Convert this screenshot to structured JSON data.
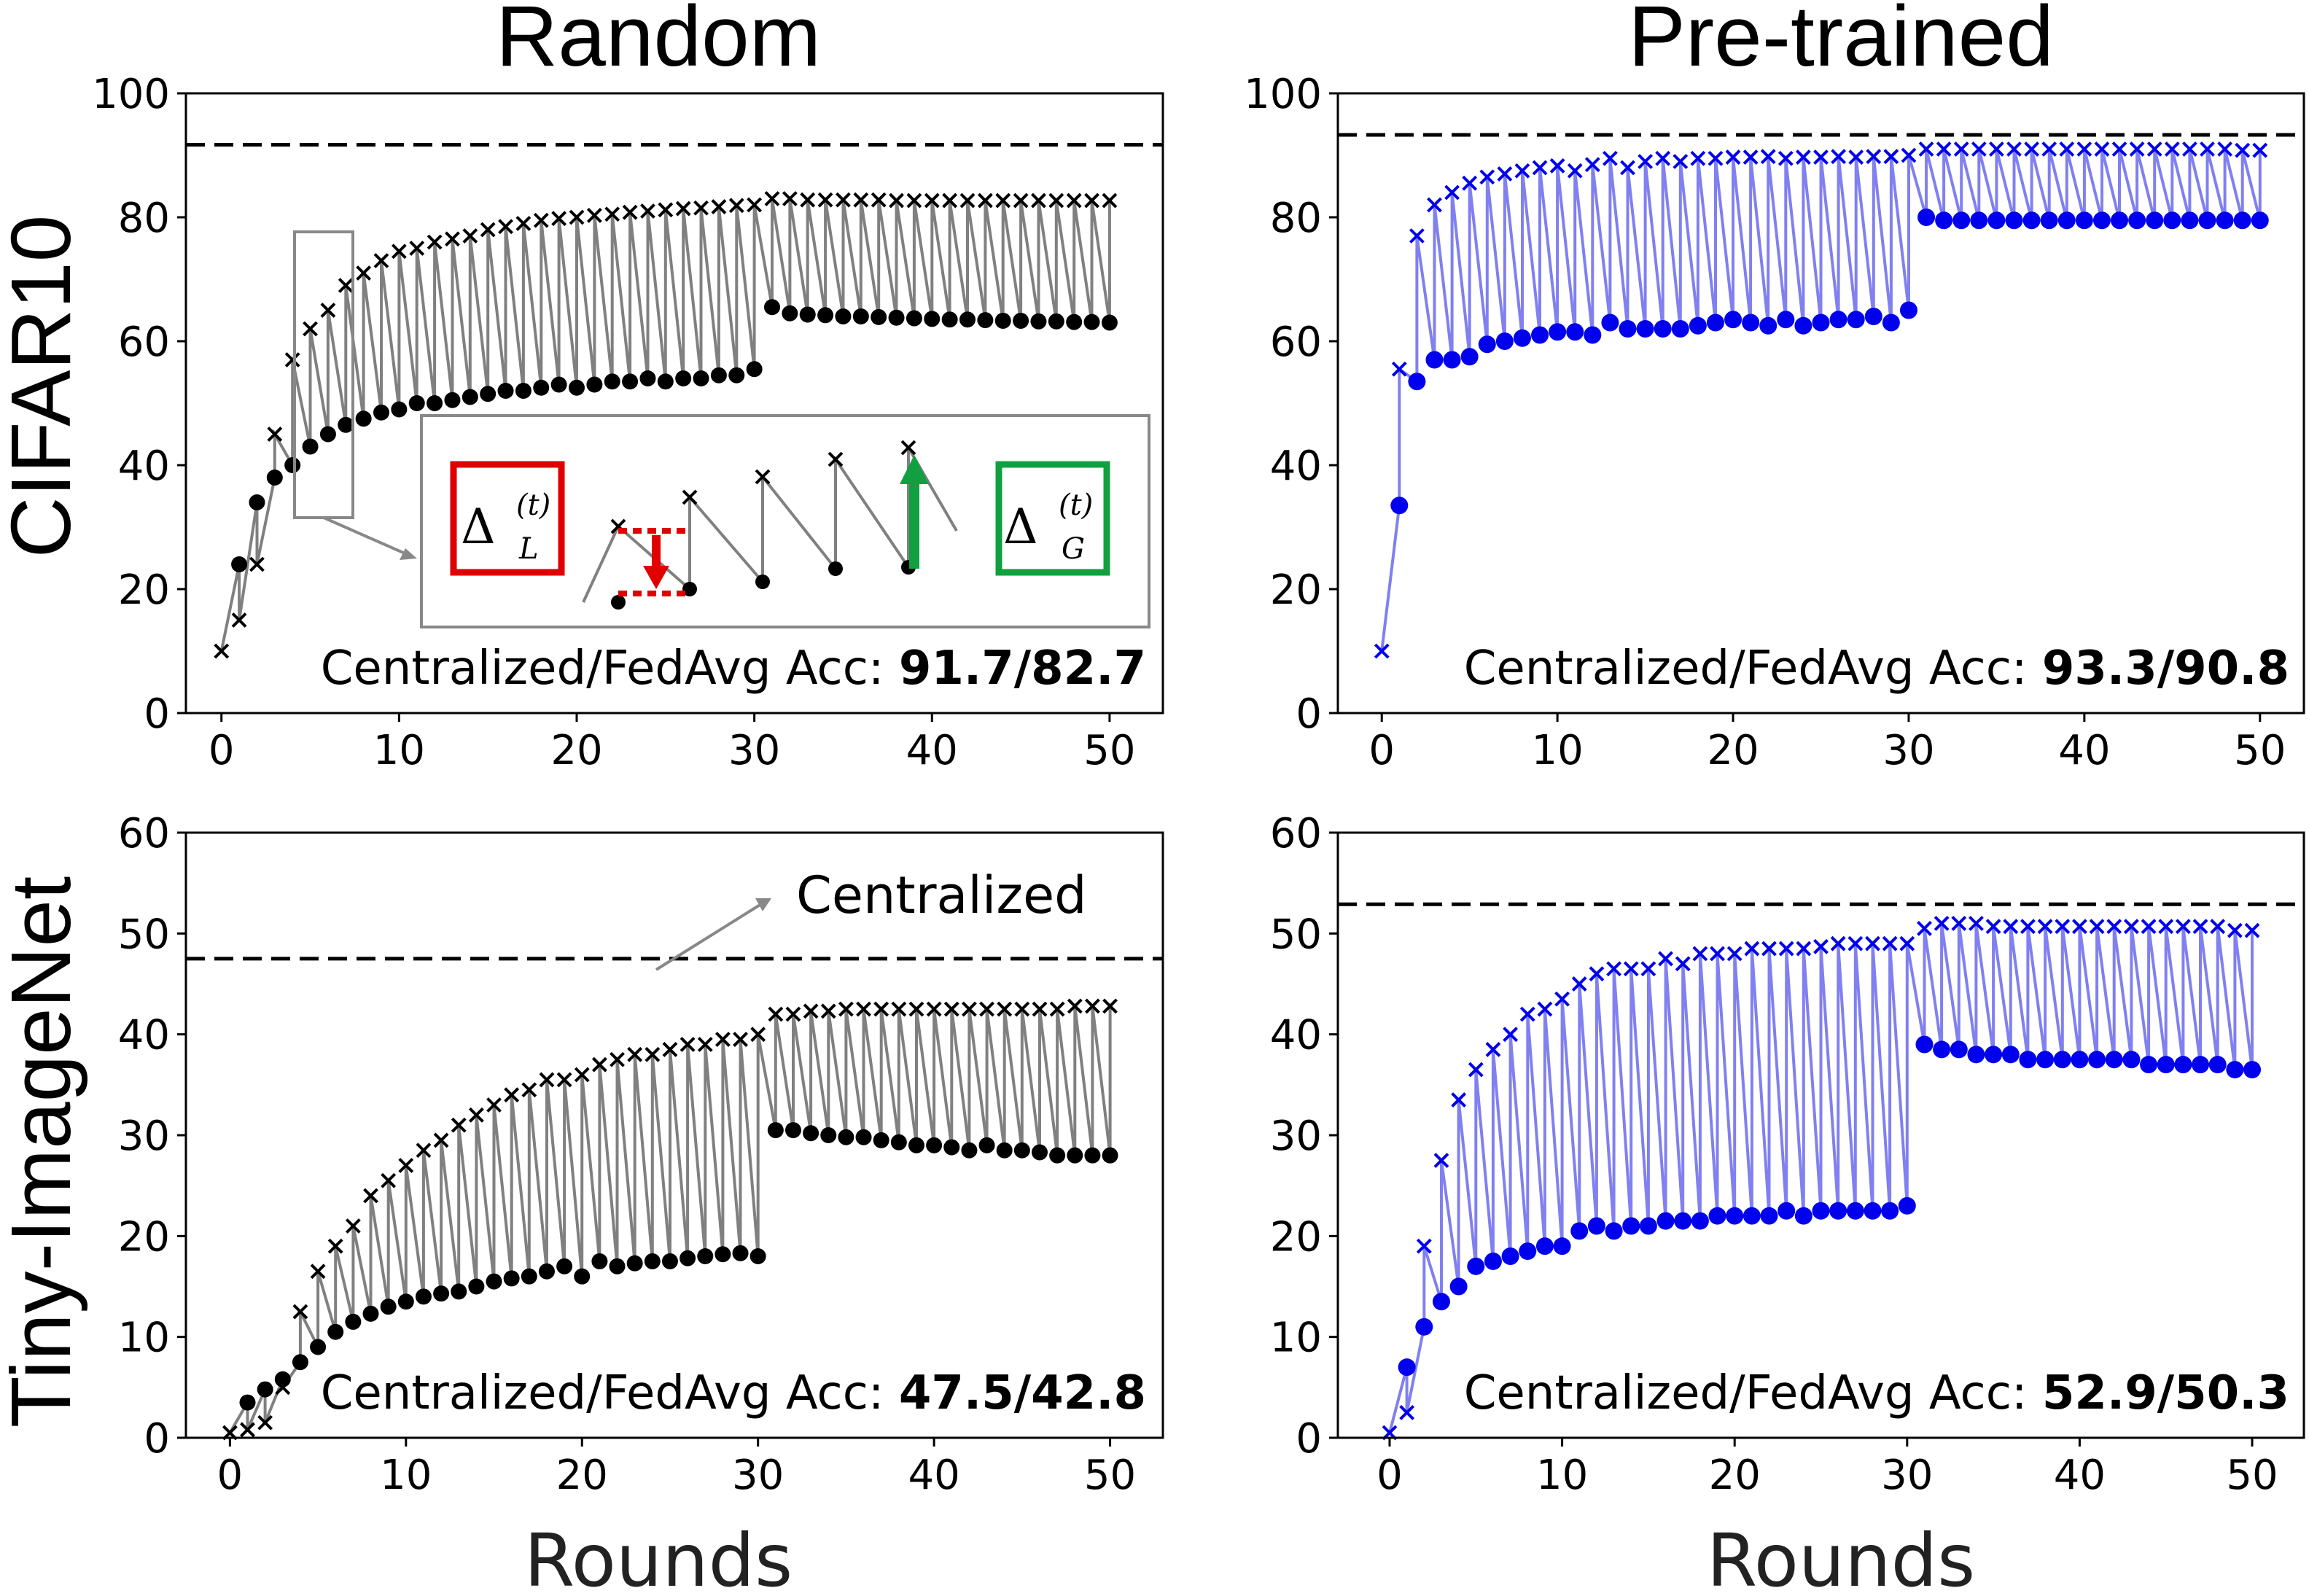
{
  "figure": {
    "column_titles": [
      "Random",
      "Pre-trained"
    ],
    "row_titles": [
      "CIFAR10",
      "Tiny-ImageNet"
    ],
    "xlabel": "Rounds"
  },
  "colors": {
    "random_line": "#808080",
    "random_marker": "#000000",
    "pretrained_line": "#8080f0",
    "pretrained_marker": "#0000ee",
    "delta_L_box": "#e00000",
    "delta_G_box": "#10a040"
  },
  "inset": {
    "delta_L": "Δ",
    "delta_L_sub": "L",
    "delta_L_sup": "(t)",
    "delta_G": "Δ",
    "delta_G_sub": "G",
    "delta_G_sup": "(t)"
  },
  "chart_data": [
    {
      "id": "random_cifar10",
      "type": "line",
      "column": "Random",
      "row": "CIFAR10",
      "title": "",
      "xlabel": "",
      "ylabel": "",
      "xlim": [
        -2,
        53
      ],
      "ylim": [
        0,
        100
      ],
      "xticks": [
        0,
        10,
        20,
        30,
        40,
        50
      ],
      "yticks": [
        0,
        20,
        40,
        60,
        80,
        100
      ],
      "centralized_reference": 91.7,
      "acc_label": "Centralized/FedAvg Acc:",
      "acc_value": "91.7/82.7",
      "series": [
        {
          "name": "Global model accuracy (x)",
          "marker": "x",
          "x": [
            0,
            1,
            2,
            3,
            4,
            5,
            6,
            7,
            8,
            9,
            10,
            11,
            12,
            13,
            14,
            15,
            16,
            17,
            18,
            19,
            20,
            21,
            22,
            23,
            24,
            25,
            26,
            27,
            28,
            29,
            30,
            31,
            32,
            33,
            34,
            35,
            36,
            37,
            38,
            39,
            40,
            41,
            42,
            43,
            44,
            45,
            46,
            47,
            48,
            49,
            50
          ],
          "values": [
            10,
            15,
            24,
            45,
            57,
            62,
            65,
            69,
            71,
            73,
            74.5,
            75,
            76,
            76.5,
            77,
            78,
            78.5,
            79,
            79.5,
            79.8,
            80,
            80.3,
            80.5,
            80.8,
            81,
            81.2,
            81.4,
            81.5,
            81.7,
            81.9,
            82,
            83,
            83,
            82.8,
            82.8,
            82.8,
            82.8,
            82.8,
            82.7,
            82.7,
            82.7,
            82.7,
            82.7,
            82.7,
            82.7,
            82.7,
            82.7,
            82.7,
            82.7,
            82.7,
            82.7
          ]
        },
        {
          "name": "Local model accuracy (dot)",
          "marker": "o",
          "x": [
            0,
            1,
            2,
            3,
            4,
            5,
            6,
            7,
            8,
            9,
            10,
            11,
            12,
            13,
            14,
            15,
            16,
            17,
            18,
            19,
            20,
            21,
            22,
            23,
            24,
            25,
            26,
            27,
            28,
            29,
            30,
            31,
            32,
            33,
            34,
            35,
            36,
            37,
            38,
            39,
            40,
            41,
            42,
            43,
            44,
            45,
            46,
            47,
            48,
            49,
            50
          ],
          "values": [
            null,
            24,
            34,
            38,
            40,
            43,
            45,
            46.5,
            47.5,
            48.5,
            49,
            50,
            50,
            50.5,
            51,
            51.5,
            52,
            52,
            52.5,
            53,
            52.5,
            53,
            53.5,
            53.5,
            54,
            53.5,
            54,
            54,
            54.5,
            54.5,
            55.5,
            65.5,
            64.5,
            64.3,
            64.2,
            64,
            64,
            63.9,
            63.8,
            63.7,
            63.6,
            63.5,
            63.5,
            63.4,
            63.3,
            63.3,
            63.2,
            63.2,
            63.1,
            63.1,
            63
          ]
        }
      ]
    },
    {
      "id": "pretrained_cifar10",
      "type": "line",
      "column": "Pre-trained",
      "row": "CIFAR10",
      "title": "",
      "xlabel": "",
      "ylabel": "",
      "xlim": [
        -2.5,
        52.5
      ],
      "ylim": [
        0,
        100
      ],
      "xticks": [
        0,
        10,
        20,
        30,
        40,
        50
      ],
      "yticks": [
        0,
        20,
        40,
        60,
        80,
        100
      ],
      "centralized_reference": 93.3,
      "acc_label": "Centralized/FedAvg Acc:",
      "acc_value": "93.3/90.8",
      "series": [
        {
          "name": "Global model accuracy (x)",
          "marker": "x",
          "x": [
            0,
            1,
            2,
            3,
            4,
            5,
            6,
            7,
            8,
            9,
            10,
            11,
            12,
            13,
            14,
            15,
            16,
            17,
            18,
            19,
            20,
            21,
            22,
            23,
            24,
            25,
            26,
            27,
            28,
            29,
            30,
            31,
            32,
            33,
            34,
            35,
            36,
            37,
            38,
            39,
            40,
            41,
            42,
            43,
            44,
            45,
            46,
            47,
            48,
            49,
            50
          ],
          "values": [
            10,
            55.5,
            77,
            82,
            84,
            85.5,
            86.5,
            87,
            87.5,
            88,
            88.3,
            87.5,
            88.5,
            89.5,
            88,
            89,
            89.5,
            89,
            89.5,
            89.5,
            89.7,
            89.7,
            89.8,
            89.5,
            89.7,
            89.7,
            89.8,
            89.7,
            89.8,
            89.8,
            90,
            91,
            91,
            91,
            91,
            91,
            91,
            91,
            91,
            91,
            91,
            91,
            91,
            91,
            91,
            91,
            91,
            91,
            91,
            90.8,
            90.8
          ]
        },
        {
          "name": "Local model accuracy (dot)",
          "marker": "o",
          "x": [
            0,
            1,
            2,
            3,
            4,
            5,
            6,
            7,
            8,
            9,
            10,
            11,
            12,
            13,
            14,
            15,
            16,
            17,
            18,
            19,
            20,
            21,
            22,
            23,
            24,
            25,
            26,
            27,
            28,
            29,
            30,
            31,
            32,
            33,
            34,
            35,
            36,
            37,
            38,
            39,
            40,
            41,
            42,
            43,
            44,
            45,
            46,
            47,
            48,
            49,
            50
          ],
          "values": [
            null,
            33.5,
            53.5,
            57,
            57,
            57.5,
            59.5,
            60,
            60.5,
            61,
            61.5,
            61.5,
            61,
            63,
            62,
            62,
            62,
            62,
            62.5,
            63,
            63.5,
            63,
            62.5,
            63.5,
            62.5,
            63,
            63.5,
            63.5,
            64,
            63,
            65,
            80,
            79.5,
            79.5,
            79.5,
            79.5,
            79.5,
            79.5,
            79.5,
            79.5,
            79.5,
            79.5,
            79.5,
            79.5,
            79.5,
            79.5,
            79.5,
            79.5,
            79.5,
            79.5,
            79.5
          ]
        }
      ]
    },
    {
      "id": "random_tinyimagenet",
      "type": "line",
      "column": "Random",
      "row": "Tiny-ImageNet",
      "title": "",
      "xlabel": "Rounds",
      "ylabel": "",
      "xlim": [
        -2.5,
        53
      ],
      "ylim": [
        0,
        60
      ],
      "xticks": [
        0,
        10,
        20,
        30,
        40,
        50
      ],
      "yticks": [
        0,
        10,
        20,
        30,
        40,
        50,
        60
      ],
      "centralized_reference": 47.5,
      "centralized_annotation": "Centralized",
      "acc_label": "Centralized/FedAvg Acc:",
      "acc_value": "47.5/42.8",
      "series": [
        {
          "name": "Global model accuracy (x)",
          "marker": "x",
          "x": [
            0,
            1,
            2,
            3,
            4,
            5,
            6,
            7,
            8,
            9,
            10,
            11,
            12,
            13,
            14,
            15,
            16,
            17,
            18,
            19,
            20,
            21,
            22,
            23,
            24,
            25,
            26,
            27,
            28,
            29,
            30,
            31,
            32,
            33,
            34,
            35,
            36,
            37,
            38,
            39,
            40,
            41,
            42,
            43,
            44,
            45,
            46,
            47,
            48,
            49,
            50
          ],
          "values": [
            0.5,
            0.8,
            1.5,
            5,
            12.5,
            16.5,
            19,
            21,
            24,
            25.5,
            27,
            28.5,
            29.5,
            31,
            32,
            33,
            34,
            34.5,
            35.5,
            35.5,
            36,
            37,
            37.5,
            38,
            38,
            38.5,
            39,
            39,
            39.5,
            39.5,
            40,
            42,
            42,
            42.3,
            42.3,
            42.5,
            42.5,
            42.5,
            42.5,
            42.5,
            42.5,
            42.5,
            42.5,
            42.5,
            42.5,
            42.5,
            42.5,
            42.5,
            42.8,
            42.8,
            42.8
          ]
        },
        {
          "name": "Local model accuracy (dot)",
          "marker": "o",
          "x": [
            0,
            1,
            2,
            3,
            4,
            5,
            6,
            7,
            8,
            9,
            10,
            11,
            12,
            13,
            14,
            15,
            16,
            17,
            18,
            19,
            20,
            21,
            22,
            23,
            24,
            25,
            26,
            27,
            28,
            29,
            30,
            31,
            32,
            33,
            34,
            35,
            36,
            37,
            38,
            39,
            40,
            41,
            42,
            43,
            44,
            45,
            46,
            47,
            48,
            49,
            50
          ],
          "values": [
            null,
            3.5,
            4.8,
            5.8,
            7.5,
            9,
            10.5,
            11.5,
            12.3,
            13,
            13.5,
            14,
            14.3,
            14.5,
            15,
            15.5,
            15.8,
            16,
            16.5,
            17,
            16,
            17.5,
            17,
            17.3,
            17.5,
            17.5,
            17.8,
            18,
            18.2,
            18.3,
            18,
            30.5,
            30.5,
            30.2,
            30,
            29.8,
            29.8,
            29.5,
            29.3,
            29,
            29,
            28.8,
            28.5,
            29,
            28.5,
            28.5,
            28.3,
            28,
            28,
            28,
            28
          ]
        }
      ]
    },
    {
      "id": "pretrained_tinyimagenet",
      "type": "line",
      "column": "Pre-trained",
      "row": "Tiny-ImageNet",
      "title": "",
      "xlabel": "Rounds",
      "ylabel": "",
      "xlim": [
        -3,
        53
      ],
      "ylim": [
        0,
        60
      ],
      "xticks": [
        0,
        10,
        20,
        30,
        40,
        50
      ],
      "yticks": [
        0,
        10,
        20,
        30,
        40,
        50,
        60
      ],
      "centralized_reference": 52.9,
      "acc_label": "Centralized/FedAvg Acc:",
      "acc_value": "52.9/50.3",
      "series": [
        {
          "name": "Global model accuracy (x)",
          "marker": "x",
          "x": [
            0,
            1,
            2,
            3,
            4,
            5,
            6,
            7,
            8,
            9,
            10,
            11,
            12,
            13,
            14,
            15,
            16,
            17,
            18,
            19,
            20,
            21,
            22,
            23,
            24,
            25,
            26,
            27,
            28,
            29,
            30,
            31,
            32,
            33,
            34,
            35,
            36,
            37,
            38,
            39,
            40,
            41,
            42,
            43,
            44,
            45,
            46,
            47,
            48,
            49,
            50
          ],
          "values": [
            0.5,
            2.5,
            19,
            27.5,
            33.5,
            36.5,
            38.5,
            40,
            42,
            42.5,
            43.5,
            45,
            46,
            46.5,
            46.5,
            46.5,
            47.5,
            47,
            48,
            48,
            48,
            48.5,
            48.5,
            48.5,
            48.5,
            48.7,
            49,
            49,
            49,
            49,
            49,
            50.5,
            51,
            51,
            51,
            50.7,
            50.7,
            50.7,
            50.7,
            50.7,
            50.7,
            50.7,
            50.7,
            50.7,
            50.7,
            50.7,
            50.7,
            50.7,
            50.7,
            50.3,
            50.3
          ]
        },
        {
          "name": "Local model accuracy (dot)",
          "marker": "o",
          "x": [
            0,
            1,
            2,
            3,
            4,
            5,
            6,
            7,
            8,
            9,
            10,
            11,
            12,
            13,
            14,
            15,
            16,
            17,
            18,
            19,
            20,
            21,
            22,
            23,
            24,
            25,
            26,
            27,
            28,
            29,
            30,
            31,
            32,
            33,
            34,
            35,
            36,
            37,
            38,
            39,
            40,
            41,
            42,
            43,
            44,
            45,
            46,
            47,
            48,
            49,
            50
          ],
          "values": [
            null,
            7,
            11,
            13.5,
            15,
            17,
            17.5,
            18,
            18.5,
            19,
            19,
            20.5,
            21,
            20.5,
            21,
            21,
            21.5,
            21.5,
            21.5,
            22,
            22,
            22,
            22,
            22.5,
            22,
            22.5,
            22.5,
            22.5,
            22.5,
            22.5,
            23,
            39,
            38.5,
            38.5,
            38,
            38,
            38,
            37.5,
            37.5,
            37.5,
            37.5,
            37.5,
            37.5,
            37.5,
            37,
            37,
            37,
            37,
            37,
            36.5,
            36.5
          ]
        }
      ]
    }
  ]
}
